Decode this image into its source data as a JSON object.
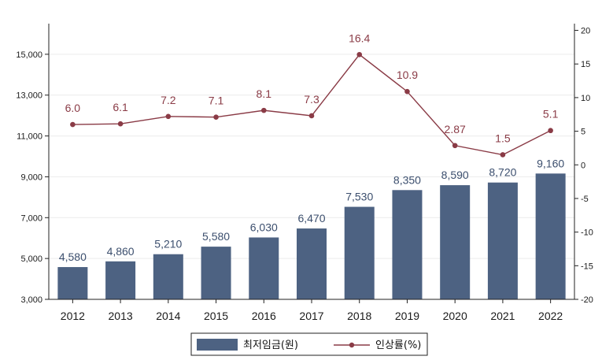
{
  "chart_data": {
    "type": "bar",
    "categories": [
      "2012",
      "2013",
      "2014",
      "2015",
      "2016",
      "2017",
      "2018",
      "2019",
      "2020",
      "2021",
      "2022"
    ],
    "series": [
      {
        "name": "최저임금(원)",
        "type": "bar",
        "axis": "left",
        "color": "#4d6282",
        "values": [
          4580,
          4860,
          5210,
          5580,
          6030,
          6470,
          7530,
          8350,
          8590,
          8720,
          9160
        ],
        "labels": [
          "4,580",
          "4,860",
          "5,210",
          "5,580",
          "6,030",
          "6,470",
          "7,530",
          "8,350",
          "8,590",
          "8,720",
          "9,160"
        ]
      },
      {
        "name": "인상률(%)",
        "type": "line",
        "axis": "right",
        "color": "#8a3b46",
        "values": [
          6.0,
          6.1,
          7.2,
          7.1,
          8.1,
          7.3,
          16.4,
          10.9,
          2.87,
          1.5,
          5.1
        ],
        "labels": [
          "6.0",
          "6.1",
          "7.2",
          "7.1",
          "8.1",
          "7.3",
          "16.4",
          "10.9",
          "2.87",
          "1.5",
          "5.1"
        ]
      }
    ],
    "y_left": {
      "range": [
        3000,
        16500
      ],
      "ticks": [
        3000,
        5000,
        7000,
        9000,
        11000,
        13000,
        15000
      ],
      "tick_labels": [
        "3,000",
        "5,000",
        "7,000",
        "9,000",
        "11,000",
        "13,000",
        "15,000"
      ]
    },
    "y_right": {
      "range": [
        -20,
        21
      ],
      "ticks": [
        -20,
        -15,
        -10,
        -5,
        0,
        5,
        10,
        15,
        20
      ],
      "tick_labels": [
        "-20",
        "-15",
        "-10",
        "-5",
        "0",
        "5",
        "10",
        "15",
        "20"
      ]
    },
    "grid": true,
    "legend_position": "bottom-center"
  }
}
